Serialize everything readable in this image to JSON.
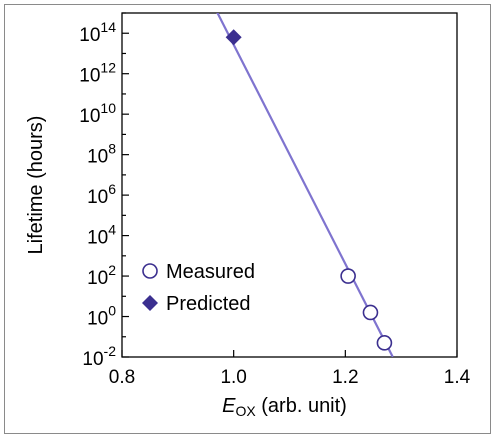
{
  "chart_data": {
    "type": "scatter",
    "xlabel_main": "E",
    "xlabel_sub": "OX",
    "xlabel_rest": " (arb. unit)",
    "ylabel": "Lifetime (hours)",
    "xlim": [
      0.8,
      1.4
    ],
    "ylim_log10": [
      -2,
      15
    ],
    "yscale": "log",
    "grid": false,
    "legend_position": "bottom-left",
    "x_ticks": [
      {
        "value": 0.8,
        "label": "0.8"
      },
      {
        "value": 1.0,
        "label": "1.0"
      },
      {
        "value": 1.2,
        "label": "1.2"
      },
      {
        "value": 1.4,
        "label": "1.4"
      }
    ],
    "y_ticks": [
      {
        "exp": -2,
        "base": "10",
        "sup": "-2"
      },
      {
        "exp": 0,
        "base": "10",
        "sup": "0"
      },
      {
        "exp": 2,
        "base": "10",
        "sup": "2"
      },
      {
        "exp": 4,
        "base": "10",
        "sup": "4"
      },
      {
        "exp": 6,
        "base": "10",
        "sup": "6"
      },
      {
        "exp": 8,
        "base": "10",
        "sup": "8"
      },
      {
        "exp": 10,
        "base": "10",
        "sup": "10"
      },
      {
        "exp": 12,
        "base": "10",
        "sup": "12"
      },
      {
        "exp": 14,
        "base": "10",
        "sup": "14"
      }
    ],
    "series": [
      {
        "name": "Measured",
        "marker": "open-circle",
        "color": "#3b2f8f",
        "points": [
          {
            "x": 1.205,
            "y_log10": 2.0
          },
          {
            "x": 1.245,
            "y_log10": 0.2
          },
          {
            "x": 1.27,
            "y_log10": -1.3
          }
        ]
      },
      {
        "name": "Predicted",
        "marker": "filled-diamond",
        "color": "#3b2f8f",
        "points": [
          {
            "x": 1.0,
            "y_log10": 13.8
          }
        ]
      }
    ],
    "fit_line": {
      "color": "#7f74cf",
      "points": [
        {
          "x": 0.96,
          "y_log10": 15.6
        },
        {
          "x": 1.285,
          "y_log10": -2.0
        }
      ]
    }
  }
}
